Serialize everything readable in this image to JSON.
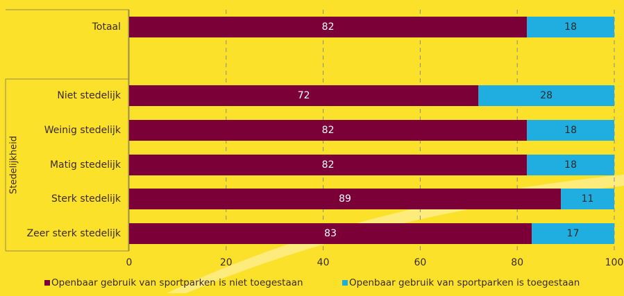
{
  "chart_data": {
    "type": "bar",
    "orientation": "horizontal",
    "stacked": true,
    "group_label": "Stedelijkheid",
    "categories": [
      "Totaal",
      "Niet stedelijk",
      "Weinig stedelijk",
      "Matig stedelijk",
      "Sterk stedelijk",
      "Zeer sterk stedelijk"
    ],
    "series": [
      {
        "name": "Openbaar gebruik van sportparken is niet toegestaan",
        "color": "#7b0038",
        "values": [
          82,
          72,
          82,
          82,
          89,
          83
        ]
      },
      {
        "name": "Openbaar gebruik van sportparken is toegestaan",
        "color": "#20aee0",
        "values": [
          18,
          28,
          18,
          18,
          11,
          17
        ]
      }
    ],
    "xlim": [
      0,
      100
    ],
    "xticks": [
      "0",
      "20",
      "40",
      "60",
      "80",
      "100"
    ],
    "grid": true,
    "legend_position": "bottom"
  }
}
